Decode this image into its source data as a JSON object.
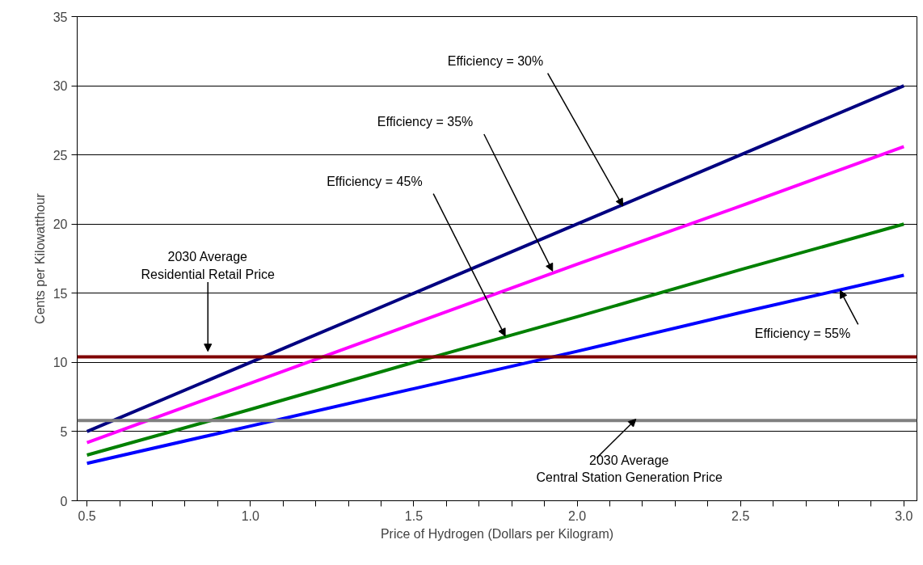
{
  "chart_data": {
    "type": "line",
    "xlabel": "Price of Hydrogen (Dollars per Kilogram)",
    "ylabel": "Cents per Kilowatthour",
    "x": [
      0.5,
      1.0,
      1.5,
      2.0,
      2.5,
      3.0
    ],
    "series": [
      {
        "color": "#000080",
        "values": [
          5,
          10,
          15,
          20,
          25,
          30
        ]
      },
      {
        "color": "#ff00ff",
        "values": [
          4.2,
          8.5,
          12.8,
          17.1,
          21.3,
          25.6
        ]
      },
      {
        "color": "#008000",
        "values": [
          3.3,
          6.6,
          10,
          13.3,
          16.7,
          20
        ]
      },
      {
        "color": "#0000ff",
        "values": [
          2.7,
          5.4,
          8.1,
          10.8,
          13.6,
          16.3
        ]
      }
    ],
    "ref_lines": [
      {
        "axis": "y",
        "value": 10.4,
        "color": "#800000"
      },
      {
        "axis": "y",
        "value": 5.8,
        "color": "#808080"
      }
    ],
    "annotations": [
      {
        "text": "Efficiency = 30%",
        "x": 2.14,
        "y": 21.3
      },
      {
        "text": "Efficiency = 35%",
        "x": 1.925,
        "y": 16.6
      },
      {
        "text": "Efficiency = 45%",
        "x": 1.78,
        "y": 11.9
      },
      {
        "text": "Efficiency = 55%",
        "x": 2.805,
        "y": 15.2
      },
      {
        "text": "2030 Average\nResidential Retail Price",
        "x": 0.87,
        "y": 10.8
      },
      {
        "text": "2030 Average\nCentral Station Generation Price",
        "x": 2.18,
        "y": 5.9
      }
    ],
    "xlim": [
      0.47,
      3.04
    ],
    "ylim": [
      0,
      35
    ],
    "xticks": [
      0.5,
      {
        "value": 0.6,
        "label": null
      },
      {
        "value": 0.7,
        "label": null
      },
      {
        "value": 0.8,
        "label": null
      },
      {
        "value": 0.9,
        "label": null
      },
      {
        "value": 1.0,
        "label": "1.0"
      },
      {
        "value": 1.1,
        "label": null
      },
      {
        "value": 1.2,
        "label": null
      },
      {
        "value": 1.3,
        "label": null
      },
      {
        "value": 1.4,
        "label": null
      },
      1.5,
      {
        "value": 1.6,
        "label": null
      },
      {
        "value": 1.7,
        "label": null
      },
      {
        "value": 1.8,
        "label": null
      },
      {
        "value": 1.9,
        "label": null
      },
      {
        "value": 2.0,
        "label": "2.0"
      },
      {
        "value": 2.1,
        "label": null
      },
      {
        "value": 2.2,
        "label": null
      },
      {
        "value": 2.3,
        "label": null
      },
      {
        "value": 2.4,
        "label": null
      },
      2.5,
      {
        "value": 2.6,
        "label": null
      },
      {
        "value": 2.7,
        "label": null
      },
      {
        "value": 2.8,
        "label": null
      },
      {
        "value": 2.9,
        "label": null
      },
      {
        "value": 3.0,
        "label": "3.0"
      }
    ],
    "yticks": [
      0,
      5,
      10,
      15,
      20,
      25,
      30,
      35
    ],
    "grid": "y",
    "marker": "none",
    "line_style": "solid"
  }
}
